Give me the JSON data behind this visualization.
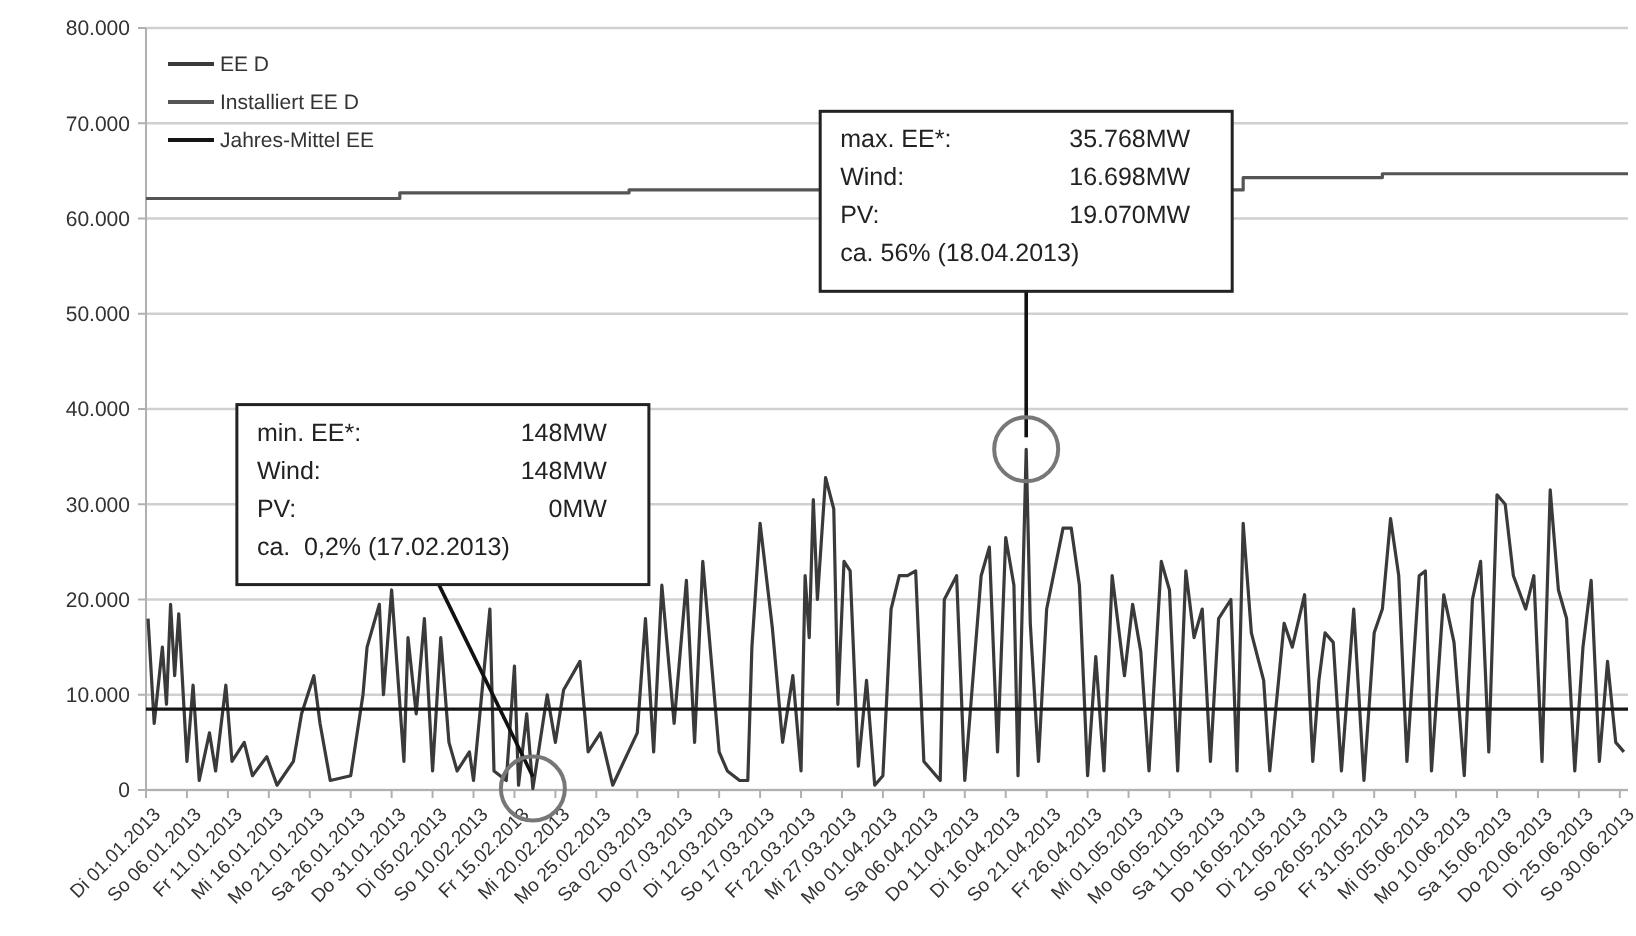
{
  "chart_data": {
    "type": "line",
    "legend": "top left",
    "grid": "y",
    "xlim": [
      "2013-01-01",
      "2013-07-01"
    ],
    "xticks": [
      {
        "value": "2013-01-01",
        "label": "Di 01.01.2013"
      },
      {
        "value": "2013-01-06",
        "label": "So 06.01.2013"
      },
      {
        "value": "2013-01-11",
        "label": "Fr 11.01.2013"
      },
      {
        "value": "2013-01-16",
        "label": "Mi 16.01.2013"
      },
      {
        "value": "2013-01-21",
        "label": "Mo 21.01.2013"
      },
      {
        "value": "2013-01-26",
        "label": "Sa 26.01.2013"
      },
      {
        "value": "2013-01-31",
        "label": "Do 31.01.2013"
      },
      {
        "value": "2013-02-05",
        "label": "Di 05.02.2013"
      },
      {
        "value": "2013-02-10",
        "label": "So 10.02.2013"
      },
      {
        "value": "2013-02-15",
        "label": "Fr 15.02.2013"
      },
      {
        "value": "2013-02-20",
        "label": "Mi 20.02.2013"
      },
      {
        "value": "2013-02-25",
        "label": "Mo 25.02.2013"
      },
      {
        "value": "2013-03-02",
        "label": "Sa 02.03.2013"
      },
      {
        "value": "2013-03-07",
        "label": "Do 07.03.2013"
      },
      {
        "value": "2013-03-12",
        "label": "Di 12.03.2013"
      },
      {
        "value": "2013-03-17",
        "label": "So 17.03.2013"
      },
      {
        "value": "2013-03-22",
        "label": "Fr 22.03.2013"
      },
      {
        "value": "2013-03-27",
        "label": "Mi 27.03.2013"
      },
      {
        "value": "2013-04-01",
        "label": "Mo 01.04.2013"
      },
      {
        "value": "2013-04-06",
        "label": "Sa 06.04.2013"
      },
      {
        "value": "2013-04-11",
        "label": "Do 11.04.2013"
      },
      {
        "value": "2013-04-16",
        "label": "Di 16.04.2013"
      },
      {
        "value": "2013-04-21",
        "label": "So 21.04.2013"
      },
      {
        "value": "2013-04-26",
        "label": "Fr 26.04.2013"
      },
      {
        "value": "2013-05-01",
        "label": "Mi 01.05.2013"
      },
      {
        "value": "2013-05-06",
        "label": "Mo 06.05.2013"
      },
      {
        "value": "2013-05-11",
        "label": "Sa 11.05.2013"
      },
      {
        "value": "2013-05-16",
        "label": "Do 16.05.2013"
      },
      {
        "value": "2013-05-21",
        "label": "Di 21.05.2013"
      },
      {
        "value": "2013-05-26",
        "label": "So 26.05.2013"
      },
      {
        "value": "2013-05-31",
        "label": "Fr 31.05.2013"
      },
      {
        "value": "2013-06-05",
        "label": "Mi 05.06.2013"
      },
      {
        "value": "2013-06-10",
        "label": "Mo 10.06.2013"
      },
      {
        "value": "2013-06-15",
        "label": "Sa 15.06.2013"
      },
      {
        "value": "2013-06-20",
        "label": "Do 20.06.2013"
      },
      {
        "value": "2013-06-25",
        "label": "Di 25.06.2013"
      },
      {
        "value": "2013-06-30",
        "label": "So 30.06.2013"
      }
    ],
    "ylim": [
      0,
      80000
    ],
    "yticks": [
      0,
      {
        "value": 10000,
        "label": "10.000"
      },
      {
        "value": 20000,
        "label": "20.000"
      },
      {
        "value": 30000,
        "label": "30.000"
      },
      {
        "value": 40000,
        "label": "40.000"
      },
      {
        "value": 50000,
        "label": "50.000"
      },
      {
        "value": 60000,
        "label": "60.000"
      },
      {
        "value": 70000,
        "label": "70.000"
      },
      {
        "value": 80000,
        "label": "80.000"
      }
    ],
    "series": [
      {
        "name": "EE D",
        "color": "#3a3a3a",
        "x": [
          "2013-01-01T06:00",
          "2013-01-02T00:00",
          "2013-01-03T00:00",
          "2013-01-03T12:00",
          "2013-01-04T00:00",
          "2013-01-04T12:00",
          "2013-01-05T00:00",
          "2013-01-06T00:00",
          "2013-01-06T18:00",
          "2013-01-07T12:00",
          "2013-01-08T18:00",
          "2013-01-09T12:00",
          "2013-01-10T18:00",
          "2013-01-11T12:00",
          "2013-01-13T00:00",
          "2013-01-14T00:00",
          "2013-01-15T18:00",
          "2013-01-17T00:00",
          "2013-01-19T00:00",
          "2013-01-20T00:00",
          "2013-01-21T12:00",
          "2013-01-22T06:00",
          "2013-01-23T12:00",
          "2013-01-26T00:00",
          "2013-01-27T12:00",
          "2013-01-28T00:00",
          "2013-01-29T12:00",
          "2013-01-30T00:00",
          "2013-01-31T00:00",
          "2013-02-01T12:00",
          "2013-02-02T00:00",
          "2013-02-03T00:00",
          "2013-02-04T00:00",
          "2013-02-05T00:00",
          "2013-02-06T00:00",
          "2013-02-07T00:00",
          "2013-02-08T00:00",
          "2013-02-09T12:00",
          "2013-02-10T00:00",
          "2013-02-12T00:00",
          "2013-02-12T12:00",
          "2013-02-14T00:00",
          "2013-02-15T00:00",
          "2013-02-15T12:00",
          "2013-02-16T12:00",
          "2013-02-17T06:00",
          "2013-02-19T00:00",
          "2013-02-20T00:00",
          "2013-02-21T00:00",
          "2013-02-23T00:00",
          "2013-02-24T00:00",
          "2013-02-25T12:00",
          "2013-02-27T00:00",
          "2013-03-02T00:00",
          "2013-03-03T00:00",
          "2013-03-04T00:00",
          "2013-03-05T00:00",
          "2013-03-06T12:00",
          "2013-03-08T00:00",
          "2013-03-09T00:00",
          "2013-03-10T00:00",
          "2013-03-12T00:00",
          "2013-03-13T00:00",
          "2013-03-14T12:00",
          "2013-03-15T12:00",
          "2013-03-16T00:00",
          "2013-03-17T00:00",
          "2013-03-18T12:00",
          "2013-03-19T18:00",
          "2013-03-21T00:00",
          "2013-03-22T00:00",
          "2013-03-22T12:00",
          "2013-03-23T00:00",
          "2013-03-23T12:00",
          "2013-03-24T00:00",
          "2013-03-25T00:00",
          "2013-03-26T00:00",
          "2013-03-26T12:00",
          "2013-03-27T06:00",
          "2013-03-28T00:00",
          "2013-03-29T00:00",
          "2013-03-30T00:00",
          "2013-03-31T00:00",
          "2013-04-01T00:00",
          "2013-04-02T00:00",
          "2013-04-03T00:00",
          "2013-04-04T00:00",
          "2013-04-05T00:00",
          "2013-04-06T00:00",
          "2013-04-08T00:00",
          "2013-04-08T12:00",
          "2013-04-10T00:00",
          "2013-04-11T00:00",
          "2013-04-13T00:00",
          "2013-04-14T00:00",
          "2013-04-15T00:00",
          "2013-04-16T00:00",
          "2013-04-17T00:00",
          "2013-04-17T12:00",
          "2013-04-18T12:00",
          "2013-04-19T00:00",
          "2013-04-20T00:00",
          "2013-04-21T00:00",
          "2013-04-23T00:00",
          "2013-04-24T00:00",
          "2013-04-25T00:00",
          "2013-04-26T00:00",
          "2013-04-27T00:00",
          "2013-04-28T00:00",
          "2013-04-29T00:00",
          "2013-04-30T12:00",
          "2013-05-01T12:00",
          "2013-05-02T12:00",
          "2013-05-03T12:00",
          "2013-05-05T00:00",
          "2013-05-06T00:00",
          "2013-05-07T00:00",
          "2013-05-08T00:00",
          "2013-05-09T00:00",
          "2013-05-10T00:00",
          "2013-05-11T00:00",
          "2013-05-12T00:00",
          "2013-05-13T12:00",
          "2013-05-14T06:00",
          "2013-05-15T00:00",
          "2013-05-16T00:00",
          "2013-05-17T12:00",
          "2013-05-18T06:00",
          "2013-05-20T00:00",
          "2013-05-21T00:00",
          "2013-05-22T12:00",
          "2013-05-23T12:00",
          "2013-05-24T06:00",
          "2013-05-25T00:00",
          "2013-05-26T00:00",
          "2013-05-27T00:00",
          "2013-05-28T12:00",
          "2013-05-29T18:00",
          "2013-05-31T00:00",
          "2013-06-01T00:00",
          "2013-06-02T00:00",
          "2013-06-03T00:00",
          "2013-06-04T00:00",
          "2013-06-05T12:00",
          "2013-06-06T06:00",
          "2013-06-07T00:00",
          "2013-06-08T12:00",
          "2013-06-09T18:00",
          "2013-06-11T00:00",
          "2013-06-12T00:00",
          "2013-06-13T00:00",
          "2013-06-14T00:00",
          "2013-06-15T00:00",
          "2013-06-16T00:00",
          "2013-06-17T00:00",
          "2013-06-18T12:00",
          "2013-06-19T12:00",
          "2013-06-20T12:00",
          "2013-06-21T12:00",
          "2013-06-22T12:00",
          "2013-06-23T12:00",
          "2013-06-24T12:00",
          "2013-06-25T12:00",
          "2013-06-26T12:00",
          "2013-06-27T12:00",
          "2013-06-28T12:00",
          "2013-06-29T12:00",
          "2013-06-30T12:00"
        ],
        "values": [
          18000,
          7000,
          15000,
          9000,
          19500,
          12000,
          18500,
          3000,
          11000,
          1000,
          6000,
          2000,
          11000,
          3000,
          5000,
          1500,
          3500,
          500,
          3000,
          8000,
          12000,
          7000,
          1000,
          1500,
          10000,
          15000,
          19500,
          10000,
          21000,
          3000,
          16000,
          8000,
          18000,
          2000,
          16000,
          5000,
          2000,
          4000,
          1000,
          19000,
          2000,
          1000,
          13000,
          500,
          8000,
          148,
          10000,
          5000,
          10500,
          13500,
          4000,
          6000,
          500,
          6000,
          18000,
          4000,
          21500,
          7000,
          22000,
          5000,
          24000,
          4000,
          2000,
          1000,
          1000,
          15000,
          28000,
          17000,
          5000,
          12000,
          2000,
          22500,
          16000,
          30500,
          20000,
          32800,
          29500,
          9000,
          24000,
          23000,
          2500,
          11500,
          500,
          1500,
          19000,
          22500,
          22500,
          23000,
          3000,
          1000,
          20000,
          22500,
          1000,
          22500,
          25500,
          4000,
          26500,
          21500,
          1500,
          35768,
          17500,
          3000,
          19000,
          27500,
          27500,
          21500,
          1500,
          14000,
          2000,
          22500,
          12000,
          19500,
          14500,
          2000,
          24000,
          21000,
          2000,
          23000,
          16000,
          19000,
          3000,
          18000,
          20000,
          2000,
          28000,
          16500,
          11500,
          2000,
          17500,
          15000,
          20500,
          3000,
          11500,
          16500,
          15500,
          2000,
          19000,
          1000,
          16500,
          19000,
          28500,
          22500,
          3000,
          22500,
          23000,
          2000,
          20500,
          15500,
          1500,
          20000,
          24000,
          4000,
          31000,
          30000,
          22500,
          19000,
          22500,
          3000,
          31500,
          21000,
          18000,
          2000,
          15000,
          22000,
          3000,
          13500,
          5000,
          4000
        ]
      },
      {
        "name": "Installiert EE D",
        "type": "step",
        "color": "#555555",
        "x": [
          "2013-01-01",
          "2013-02-01",
          "2013-03-01",
          "2013-05-15",
          "2013-06-01",
          "2013-07-01"
        ],
        "values": [
          62100,
          62700,
          63000,
          64300,
          64700,
          64700
        ]
      },
      {
        "name": "Jahres-Mittel EE",
        "type": "line",
        "color": "#151515",
        "x": [
          "2013-01-01",
          "2013-07-01"
        ],
        "values": [
          8500,
          8500
        ]
      }
    ],
    "annotations": [
      "min. EE*: 148MW",
      "Wind: 148MW",
      "PV: 0MW",
      {
        "text": "ca.  0,2% (17.02.2013)",
        "x": "2013-02-17T06:00",
        "y": 148
      },
      "max. EE*: 35.768MW",
      "Wind: 16.698MW",
      "PV: 19.070MW",
      {
        "text": "ca. 56% (18.04.2013)",
        "x": "2013-04-18T12:00",
        "y": 35768
      }
    ]
  }
}
